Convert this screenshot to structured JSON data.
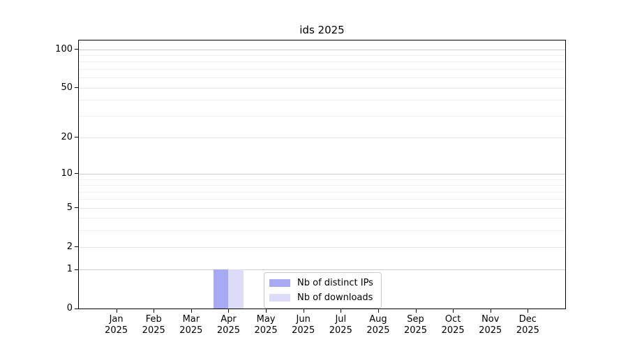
{
  "chart_data": {
    "type": "bar",
    "title": "ids 2025",
    "x": {
      "categories": [
        "Jan",
        "Feb",
        "Mar",
        "Apr",
        "May",
        "Jun",
        "Jul",
        "Aug",
        "Sep",
        "Oct",
        "Nov",
        "Dec"
      ],
      "year": "2025"
    },
    "y": {
      "scale": "log1p",
      "ylim": [
        0,
        117
      ],
      "major_ticks": [
        0,
        1,
        2,
        5,
        10,
        20,
        50,
        100
      ],
      "minor_ticks": [
        3,
        4,
        6,
        7,
        8,
        9,
        30,
        40,
        60,
        70,
        80,
        90
      ],
      "decade_ticks": [
        1,
        10,
        100
      ]
    },
    "series": [
      {
        "name": "Nb of distinct IPs",
        "color": "#a8a8f5",
        "values": [
          0,
          0,
          0,
          1,
          0,
          0,
          0,
          0,
          0,
          0,
          0,
          0
        ]
      },
      {
        "name": "Nb of downloads",
        "color": "#dcdcf8",
        "values": [
          0,
          0,
          0,
          1,
          0,
          0,
          0,
          0,
          0,
          0,
          0,
          0
        ]
      }
    ],
    "grid": "horizontal",
    "legend_position": "inside-bottom-center",
    "colors": {
      "decade_grid": "#cccccc",
      "major_grid": "#e4e4e4",
      "minor_grid": "#f0f0f0",
      "axis": "#000000",
      "text": "#000000"
    }
  }
}
